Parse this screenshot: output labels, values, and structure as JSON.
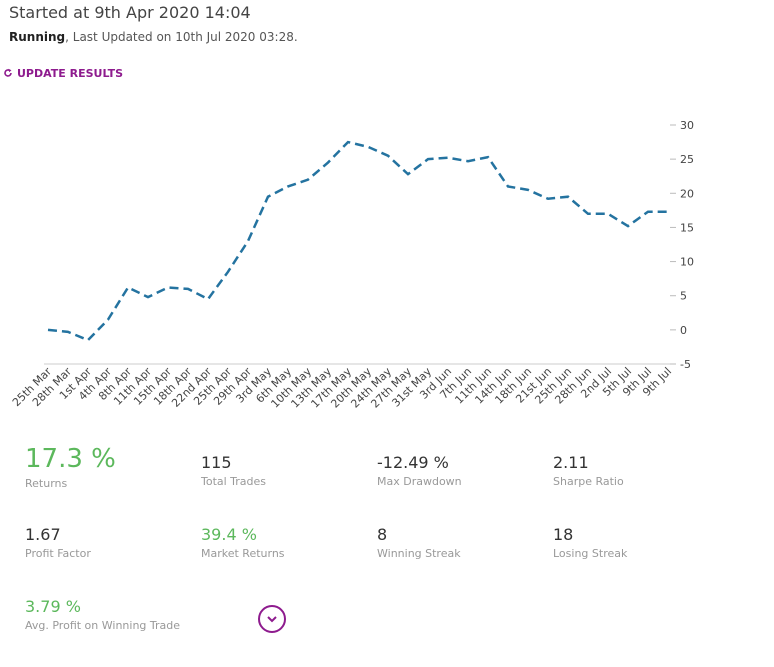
{
  "header": {
    "title": "Started at 9th Apr 2020 14:04",
    "status": "Running",
    "updated": ", Last Updated on 10th Jul 2020 03:28.",
    "action": "UPDATE RESULTS"
  },
  "chart_data": {
    "type": "line",
    "line_style": "dashed",
    "color": "#2473a0",
    "categories": [
      "25th Mar",
      "28th Mar",
      "1st Apr",
      "4th Apr",
      "8th Apr",
      "11th Apr",
      "15th Apr",
      "18th Apr",
      "22nd Apr",
      "25th Apr",
      "29th Apr",
      "3rd May",
      "6th May",
      "10th May",
      "13th May",
      "17th May",
      "20th May",
      "24th May",
      "27th May",
      "31st May",
      "3rd Jun",
      "7th Jun",
      "11th Jun",
      "14th Jun",
      "18th Jun",
      "21st Jun",
      "25th Jun",
      "28th Jun",
      "2nd Jul",
      "5th Jul",
      "9th Jul",
      "9th Jul"
    ],
    "values": [
      0,
      -0.3,
      -1.5,
      1.5,
      6.2,
      4.8,
      6.2,
      6.0,
      4.5,
      8.5,
      13,
      19.5,
      21,
      22,
      24.5,
      27.5,
      26.8,
      25.5,
      22.8,
      25,
      25.2,
      24.7,
      25.3,
      21,
      20.5,
      19.2,
      19.5,
      17,
      17,
      15.2,
      17.3,
      17.3
    ],
    "ylim": [
      -5,
      30
    ],
    "yticks": [
      -5,
      0,
      5,
      10,
      15,
      20,
      25,
      30
    ],
    "y_axis_side": "right"
  },
  "stats": [
    {
      "value": "17.3 %",
      "label": "Returns",
      "color": "#5cb85c",
      "size": "large"
    },
    {
      "value": "115",
      "label": "Total Trades",
      "color": "#333333"
    },
    {
      "value": "-12.49 %",
      "label": "Max Drawdown",
      "color": "#333333"
    },
    {
      "value": "2.11",
      "label": "Sharpe Ratio",
      "color": "#333333"
    },
    {
      "value": "1.67",
      "label": "Profit Factor",
      "color": "#333333"
    },
    {
      "value": "39.4 %",
      "label": "Market Returns",
      "color": "#5cb85c"
    },
    {
      "value": "8",
      "label": "Winning Streak",
      "color": "#333333"
    },
    {
      "value": "18",
      "label": "Losing Streak",
      "color": "#333333"
    },
    {
      "value": "3.79 %",
      "label": "Avg. Profit on Winning Trade",
      "color": "#5cb85c"
    }
  ]
}
